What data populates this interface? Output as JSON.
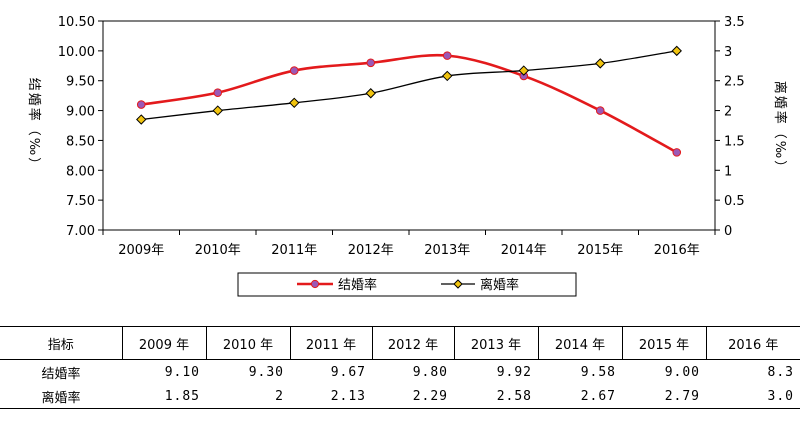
{
  "chart_data": {
    "type": "line",
    "categories": [
      "2009年",
      "2010年",
      "2011年",
      "2012年",
      "2013年",
      "2014年",
      "2015年",
      "2016年"
    ],
    "ylabel_left": "结婚率（‰）",
    "ylabel_right": "离婚率（‰）",
    "ylim_left": [
      7.0,
      10.5
    ],
    "yticks_left": [
      "7.00",
      "7.50",
      "8.00",
      "8.50",
      "9.00",
      "9.50",
      "10.00",
      "10.50"
    ],
    "ylim_right": [
      0,
      3.5
    ],
    "yticks_right": [
      "0",
      "0.5",
      "1",
      "1.5",
      "2",
      "2.5",
      "3",
      "3.5"
    ],
    "grid": false,
    "legend_placement": "bottom",
    "series": [
      {
        "name": "结婚率",
        "axis": "left",
        "color": "#e31a1c",
        "marker_color": "#9b59b6",
        "values": [
          9.1,
          9.3,
          9.67,
          9.8,
          9.92,
          9.58,
          9.0,
          8.3
        ]
      },
      {
        "name": "离婚率",
        "axis": "right",
        "color": "#000000",
        "marker_color": "#f1c40f",
        "values": [
          1.85,
          2.0,
          2.13,
          2.29,
          2.58,
          2.67,
          2.79,
          3.0
        ]
      }
    ]
  },
  "table": {
    "header_label": "指标",
    "years": [
      "2009 年",
      "2010 年",
      "2011 年",
      "2012 年",
      "2013 年",
      "2014 年",
      "2015 年",
      "2016 年"
    ],
    "rows": [
      {
        "label": "结婚率",
        "values": [
          "9.10",
          "9.30",
          "9.67",
          "9.80",
          "9.92",
          "9.58",
          "9.00",
          "8.3"
        ]
      },
      {
        "label": "离婚率",
        "values": [
          "1.85",
          "2",
          "2.13",
          "2.29",
          "2.58",
          "2.67",
          "2.79",
          "3.0"
        ]
      }
    ]
  }
}
